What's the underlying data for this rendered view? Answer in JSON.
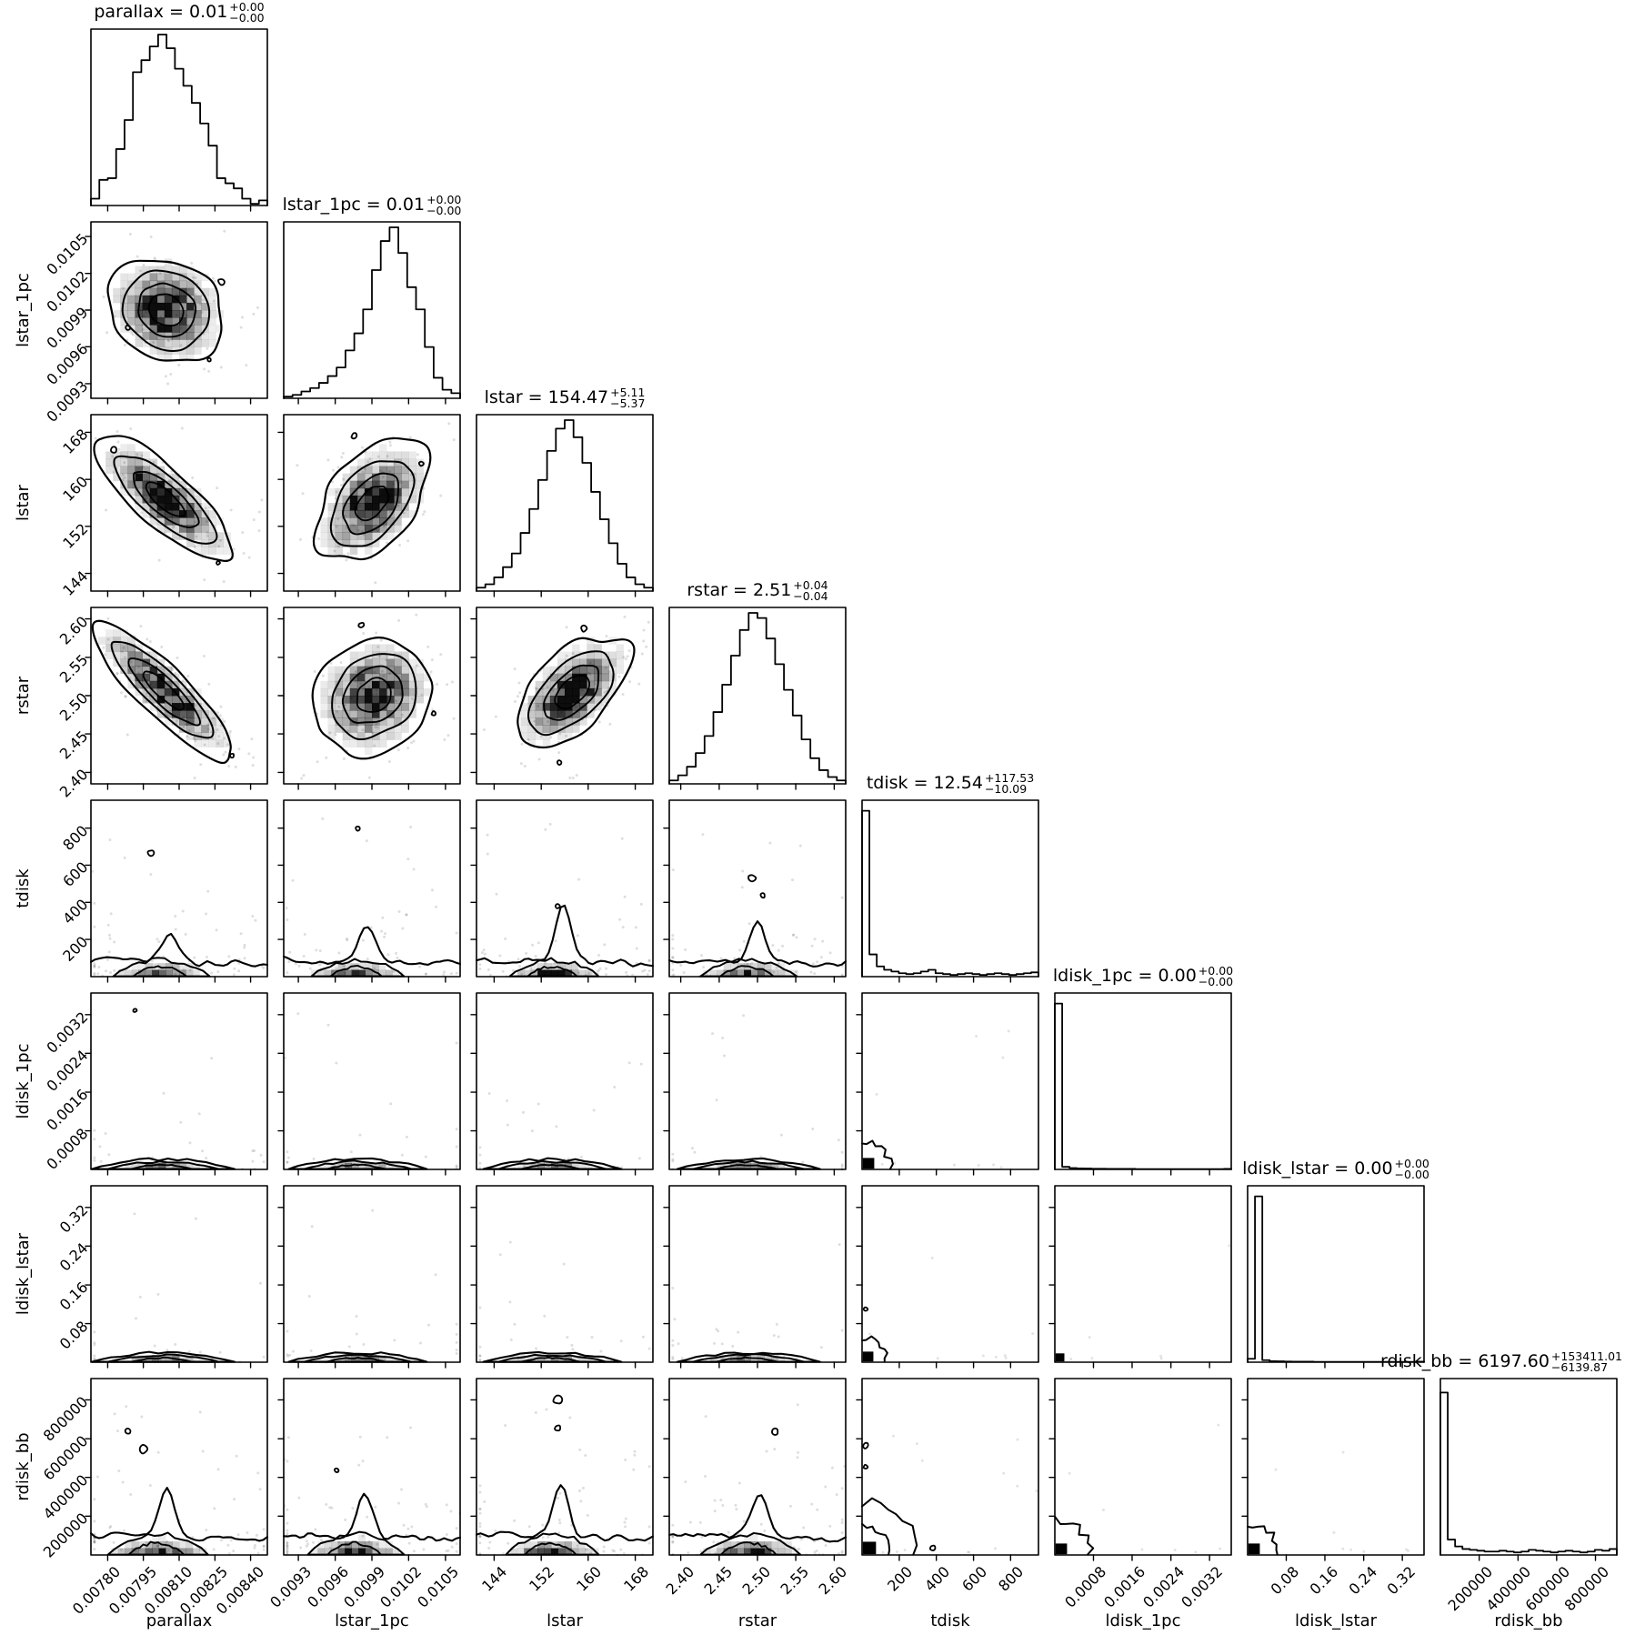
{
  "chart_data": {
    "type": "corner-plot-histogram-matrix",
    "title": "",
    "grid": "8x8 lower-triangle corner plot: diagonal = 1D marginal step histograms, off-diagonal = 2D grayscale density histograms with contours and scatter points",
    "style": {
      "line_color": "#000000",
      "background": "#ffffff",
      "heat_color": "#000000",
      "dot_alpha": 0.13
    },
    "params": [
      {
        "name": "parallax",
        "title_main": "parallax = 0.01",
        "title_plus": "+0.00",
        "title_minus": "−0.00",
        "range": [
          0.00773,
          0.00847
        ],
        "ticks": [
          [
            "0.00780",
            0.095
          ],
          [
            "0.00795",
            0.297
          ],
          [
            "0.00810",
            0.5
          ],
          [
            "0.00825",
            0.703
          ],
          [
            "0.00840",
            0.905
          ]
        ],
        "hist": [
          0.04,
          0.15,
          0.16,
          0.33,
          0.5,
          0.78,
          0.85,
          0.93,
          1.0,
          0.92,
          0.8,
          0.7,
          0.6,
          0.48,
          0.35,
          0.16,
          0.13,
          0.1,
          0.04,
          0.01,
          0.03
        ]
      },
      {
        "name": "lstar_1pc",
        "title_main": "lstar_1pc = 0.01",
        "title_plus": "+0.00",
        "title_minus": "−0.00",
        "range": [
          0.00918,
          0.01062
        ],
        "ticks": [
          [
            "0.0093",
            0.083
          ],
          [
            "0.0096",
            0.292
          ],
          [
            "0.0099",
            0.5
          ],
          [
            "0.0102",
            0.708
          ],
          [
            "0.0105",
            0.917
          ]
        ],
        "hist": [
          0.01,
          0.02,
          0.04,
          0.06,
          0.09,
          0.13,
          0.18,
          0.28,
          0.38,
          0.52,
          0.75,
          0.92,
          1.0,
          0.85,
          0.65,
          0.52,
          0.3,
          0.12,
          0.05,
          0.03
        ]
      },
      {
        "name": "lstar",
        "title_main": "lstar = 154.47",
        "title_plus": "+5.11",
        "title_minus": "−5.37",
        "range": [
          141,
          171
        ],
        "ticks": [
          [
            "144",
            0.1
          ],
          [
            "152",
            0.367
          ],
          [
            "160",
            0.633
          ],
          [
            "168",
            0.9
          ]
        ],
        "hist": [
          0.02,
          0.04,
          0.08,
          0.14,
          0.22,
          0.34,
          0.48,
          0.65,
          0.82,
          0.95,
          1.0,
          0.9,
          0.75,
          0.58,
          0.42,
          0.28,
          0.16,
          0.08,
          0.04,
          0.02
        ]
      },
      {
        "name": "rstar",
        "title_main": "rstar = 2.51",
        "title_plus": "+0.04",
        "title_minus": "−0.04",
        "range": [
          2.385,
          2.615
        ],
        "ticks": [
          [
            "2.40",
            0.065
          ],
          [
            "2.45",
            0.283
          ],
          [
            "2.50",
            0.5
          ],
          [
            "2.55",
            0.717
          ],
          [
            "2.60",
            0.935
          ]
        ],
        "hist": [
          0.02,
          0.05,
          0.1,
          0.18,
          0.28,
          0.42,
          0.58,
          0.75,
          0.9,
          1.0,
          0.97,
          0.85,
          0.7,
          0.55,
          0.4,
          0.26,
          0.15,
          0.08,
          0.04,
          0.02
        ]
      },
      {
        "name": "tdisk",
        "title_main": "tdisk = 12.54",
        "title_plus": "+117.53",
        "title_minus": "−10.09",
        "range": [
          0,
          950
        ],
        "ticks": [
          [
            "200",
            0.211
          ],
          [
            "400",
            0.421
          ],
          [
            "600",
            0.632
          ],
          [
            "800",
            0.842
          ]
        ],
        "hist": [
          0.97,
          0.13,
          0.06,
          0.04,
          0.03,
          0.02,
          0.015,
          0.02,
          0.03,
          0.04,
          0.02,
          0.015,
          0.01,
          0.015,
          0.02,
          0.015,
          0.01,
          0.015,
          0.02,
          0.015,
          0.01,
          0.015,
          0.02,
          0.025
        ]
      },
      {
        "name": "ldisk_1pc",
        "title_main": "ldisk_1pc = 0.00",
        "title_plus": "+0.00",
        "title_minus": "−0.00",
        "range": [
          0,
          0.00365
        ],
        "ticks": [
          [
            "0.0008",
            0.219
          ],
          [
            "0.0016",
            0.438
          ],
          [
            "0.0024",
            0.658
          ],
          [
            "0.0032",
            0.877
          ]
        ],
        "hist": [
          0.97,
          0.015,
          0.008,
          0.006,
          0.005,
          0.004,
          0.004,
          0.003,
          0.003,
          0.003,
          0.003,
          0.002,
          0.002,
          0.002,
          0.002,
          0.002,
          0.002,
          0.002,
          0.002,
          0.002,
          0.002,
          0.002,
          0.002,
          0.003
        ]
      },
      {
        "name": "ldisk_lstar",
        "title_main": "ldisk_lstar = 0.00",
        "title_plus": "+0.00",
        "title_minus": "−0.00",
        "range": [
          0,
          0.365
        ],
        "ticks": [
          [
            "0.08",
            0.219
          ],
          [
            "0.16",
            0.438
          ],
          [
            "0.24",
            0.658
          ],
          [
            "0.32",
            0.877
          ]
        ],
        "hist": [
          0.02,
          0.97,
          0.012,
          0.006,
          0.005,
          0.004,
          0.003,
          0.003,
          0.003,
          0.002,
          0.002,
          0.002,
          0.002,
          0.002,
          0.002,
          0.002,
          0.002,
          0.002,
          0.002,
          0.002,
          0.002,
          0.002,
          0.002,
          0.003
        ]
      },
      {
        "name": "rdisk_bb",
        "title_main": "rdisk_bb = 6197.60",
        "title_plus": "+153411.01",
        "title_minus": "−6139.87",
        "range": [
          0,
          910000
        ],
        "ticks": [
          [
            "200000",
            0.22
          ],
          [
            "400000",
            0.44
          ],
          [
            "600000",
            0.659
          ],
          [
            "800000",
            0.879
          ]
        ],
        "hist": [
          0.95,
          0.09,
          0.05,
          0.035,
          0.03,
          0.025,
          0.02,
          0.02,
          0.025,
          0.02,
          0.015,
          0.02,
          0.03,
          0.025,
          0.02,
          0.015,
          0.02,
          0.025,
          0.02,
          0.015,
          0.02,
          0.03,
          0.025,
          0.035
        ]
      }
    ],
    "panels": [
      {
        "r": 2,
        "c": 1,
        "kind": "blob",
        "cx": 0.43,
        "cy": 0.5,
        "sx": 0.165,
        "sy": 0.15,
        "rho": -0.15,
        "dots": 85,
        "sats": [
          [
            0.74,
            0.66,
            0.02
          ],
          [
            0.21,
            0.4,
            0.013
          ],
          [
            0.67,
            0.22,
            0.011
          ]
        ]
      },
      {
        "r": 3,
        "c": 1,
        "kind": "blob",
        "cx": 0.42,
        "cy": 0.52,
        "sx": 0.185,
        "sy": 0.165,
        "rho": -0.78,
        "dots": 95,
        "sats": [
          [
            0.13,
            0.8,
            0.017
          ],
          [
            0.72,
            0.16,
            0.011
          ]
        ]
      },
      {
        "r": 3,
        "c": 2,
        "kind": "blob",
        "cx": 0.5,
        "cy": 0.5,
        "sx": 0.155,
        "sy": 0.165,
        "rho": 0.45,
        "dots": 95,
        "sats": [
          [
            0.4,
            0.88,
            0.017
          ],
          [
            0.78,
            0.72,
            0.013
          ]
        ]
      },
      {
        "r": 4,
        "c": 1,
        "kind": "blob",
        "cx": 0.41,
        "cy": 0.53,
        "sx": 0.195,
        "sy": 0.185,
        "rho": -0.87,
        "dots": 105,
        "sats": [
          [
            0.8,
            0.16,
            0.012
          ]
        ]
      },
      {
        "r": 4,
        "c": 2,
        "kind": "blob",
        "cx": 0.51,
        "cy": 0.5,
        "sx": 0.165,
        "sy": 0.16,
        "rho": 0.18,
        "dots": 95,
        "sats": [
          [
            0.44,
            0.9,
            0.015
          ],
          [
            0.85,
            0.4,
            0.012
          ]
        ]
      },
      {
        "r": 4,
        "c": 3,
        "kind": "blob",
        "cx": 0.54,
        "cy": 0.52,
        "sx": 0.16,
        "sy": 0.155,
        "rho": 0.55,
        "dots": 95,
        "sats": [
          [
            0.61,
            0.88,
            0.017
          ],
          [
            0.47,
            0.12,
            0.012
          ]
        ]
      },
      {
        "r": 5,
        "c": 1,
        "kind": "strip",
        "cx": 0.4,
        "spread": 0.26,
        "h": 0.07,
        "bump": 0.16,
        "dots": 60,
        "sats": [
          [
            0.34,
            0.7,
            0.018
          ]
        ]
      },
      {
        "r": 5,
        "c": 2,
        "kind": "strip",
        "cx": 0.42,
        "spread": 0.25,
        "h": 0.07,
        "bump": 0.2,
        "dots": 60,
        "sats": [
          [
            0.42,
            0.84,
            0.012
          ]
        ]
      },
      {
        "r": 5,
        "c": 3,
        "kind": "strip",
        "cx": 0.44,
        "spread": 0.24,
        "h": 0.07,
        "bump": 0.32,
        "dots": 60,
        "sats": [
          [
            0.46,
            0.4,
            0.014
          ]
        ]
      },
      {
        "r": 5,
        "c": 4,
        "kind": "strip",
        "cx": 0.45,
        "spread": 0.26,
        "h": 0.07,
        "bump": 0.22,
        "dots": 60,
        "sats": [
          [
            0.47,
            0.56,
            0.02
          ],
          [
            0.53,
            0.46,
            0.014
          ]
        ]
      },
      {
        "r": 6,
        "c": 1,
        "kind": "strip",
        "cx": 0.41,
        "spread": 0.3,
        "h": 0.032,
        "bump": 0.05,
        "dots": 25,
        "sats": [
          [
            0.25,
            0.9,
            0.01
          ]
        ]
      },
      {
        "r": 6,
        "c": 2,
        "kind": "strip",
        "cx": 0.42,
        "spread": 0.29,
        "h": 0.032,
        "bump": 0.05,
        "dots": 25,
        "sats": []
      },
      {
        "r": 6,
        "c": 3,
        "kind": "strip",
        "cx": 0.43,
        "spread": 0.29,
        "h": 0.032,
        "bump": 0.05,
        "dots": 25,
        "sats": []
      },
      {
        "r": 6,
        "c": 4,
        "kind": "strip",
        "cx": 0.45,
        "spread": 0.3,
        "h": 0.032,
        "bump": 0.05,
        "dots": 25,
        "sats": []
      },
      {
        "r": 6,
        "c": 5,
        "kind": "corner",
        "size": 0.065,
        "arcs": [
          0.16
        ],
        "dots": 10,
        "sats": []
      },
      {
        "r": 7,
        "c": 1,
        "kind": "strip",
        "cx": 0.41,
        "spread": 0.3,
        "h": 0.03,
        "bump": 0.05,
        "dots": 25,
        "sats": []
      },
      {
        "r": 7,
        "c": 2,
        "kind": "strip",
        "cx": 0.42,
        "spread": 0.29,
        "h": 0.03,
        "bump": 0.05,
        "dots": 25,
        "sats": []
      },
      {
        "r": 7,
        "c": 3,
        "kind": "strip",
        "cx": 0.43,
        "spread": 0.29,
        "h": 0.03,
        "bump": 0.05,
        "dots": 25,
        "sats": []
      },
      {
        "r": 7,
        "c": 4,
        "kind": "strip",
        "cx": 0.45,
        "spread": 0.3,
        "h": 0.03,
        "bump": 0.05,
        "dots": 25,
        "sats": []
      },
      {
        "r": 7,
        "c": 5,
        "kind": "corner",
        "size": 0.06,
        "arcs": [
          0.14
        ],
        "dots": 8,
        "sats": [
          [
            0.02,
            0.3,
            0.012
          ]
        ]
      },
      {
        "r": 7,
        "c": 6,
        "kind": "corner",
        "size": 0.05,
        "arcs": [],
        "dots": 6,
        "sats": []
      },
      {
        "r": 8,
        "c": 1,
        "kind": "strip",
        "cx": 0.38,
        "spread": 0.27,
        "h": 0.085,
        "bump": 0.26,
        "dots": 70,
        "sats": [
          [
            0.3,
            0.6,
            0.024
          ],
          [
            0.21,
            0.7,
            0.016
          ]
        ]
      },
      {
        "r": 8,
        "c": 2,
        "kind": "strip",
        "cx": 0.41,
        "spread": 0.26,
        "h": 0.085,
        "bump": 0.24,
        "dots": 70,
        "sats": [
          [
            0.3,
            0.48,
            0.013
          ]
        ]
      },
      {
        "r": 8,
        "c": 3,
        "kind": "strip",
        "cx": 0.43,
        "spread": 0.25,
        "h": 0.085,
        "bump": 0.28,
        "dots": 70,
        "sats": [
          [
            0.46,
            0.88,
            0.024
          ],
          [
            0.46,
            0.72,
            0.018
          ]
        ]
      },
      {
        "r": 8,
        "c": 4,
        "kind": "strip",
        "cx": 0.46,
        "spread": 0.27,
        "h": 0.085,
        "bump": 0.24,
        "dots": 70,
        "sats": [
          [
            0.6,
            0.7,
            0.018
          ]
        ]
      },
      {
        "r": 8,
        "c": 5,
        "kind": "corner",
        "size": 0.075,
        "arcs": [
          0.3,
          0.16
        ],
        "dots": 14,
        "sats": [
          [
            0.02,
            0.62,
            0.016
          ],
          [
            0.02,
            0.5,
            0.012
          ],
          [
            0.4,
            0.04,
            0.015
          ]
        ]
      },
      {
        "r": 8,
        "c": 6,
        "kind": "corner",
        "size": 0.065,
        "arcs": [
          0.2
        ],
        "dots": 8,
        "sats": []
      },
      {
        "r": 8,
        "c": 7,
        "kind": "corner",
        "size": 0.065,
        "arcs": [
          0.18
        ],
        "dots": 8,
        "sats": []
      }
    ]
  }
}
